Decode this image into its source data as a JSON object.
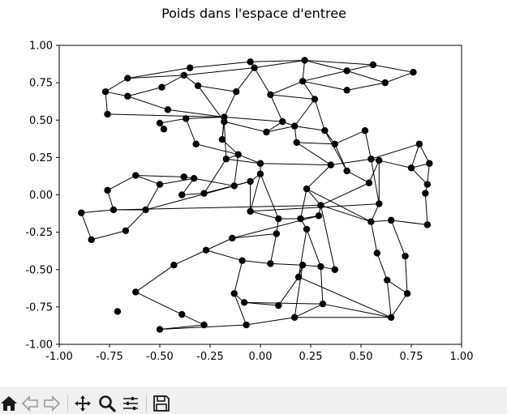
{
  "window": {
    "figure_title": "Poids dans l'espace d'entree"
  },
  "chart_data": {
    "type": "scatter",
    "title": "Poids dans l'espace d'entree",
    "xlabel": "",
    "ylabel": "",
    "xlim": [
      -1.0,
      1.0
    ],
    "ylim": [
      -1.0,
      1.0
    ],
    "xticks": [
      "-1.00",
      "-0.75",
      "-0.50",
      "-0.25",
      "0.00",
      "0.25",
      "0.50",
      "0.75",
      "1.00"
    ],
    "yticks": [
      "-1.00",
      "-0.75",
      "-0.50",
      "-0.25",
      "0.00",
      "0.25",
      "0.50",
      "0.75",
      "1.00"
    ],
    "grid": false,
    "marker_color": "#000000",
    "line_color": "#000000",
    "points": [
      [
        -0.35,
        0.85
      ],
      [
        -0.05,
        0.89
      ],
      [
        0.22,
        0.9
      ],
      [
        0.56,
        0.87
      ],
      [
        0.76,
        0.82
      ],
      [
        -0.66,
        0.78
      ],
      [
        -0.38,
        0.8
      ],
      [
        -0.03,
        0.85
      ],
      [
        0.43,
        0.83
      ],
      [
        0.62,
        0.75
      ],
      [
        -0.77,
        0.69
      ],
      [
        -0.49,
        0.72
      ],
      [
        -0.31,
        0.73
      ],
      [
        -0.12,
        0.69
      ],
      [
        0.21,
        0.76
      ],
      [
        0.43,
        0.7
      ],
      [
        -0.66,
        0.66
      ],
      [
        0.05,
        0.67
      ],
      [
        0.27,
        0.64
      ],
      [
        -0.46,
        0.57
      ],
      [
        -0.76,
        0.54
      ],
      [
        -0.18,
        0.52
      ],
      [
        -0.37,
        0.51
      ],
      [
        0.11,
        0.49
      ],
      [
        -0.5,
        0.48
      ],
      [
        -0.48,
        0.44
      ],
      [
        0.17,
        0.46
      ],
      [
        -0.18,
        0.49
      ],
      [
        0.32,
        0.43
      ],
      [
        0.52,
        0.43
      ],
      [
        0.03,
        0.42
      ],
      [
        -0.19,
        0.37
      ],
      [
        0.18,
        0.35
      ],
      [
        -0.32,
        0.34
      ],
      [
        0.37,
        0.34
      ],
      [
        0.79,
        0.34
      ],
      [
        -0.11,
        0.27
      ],
      [
        0.55,
        0.24
      ],
      [
        -0.17,
        0.24
      ],
      [
        0.59,
        0.23
      ],
      [
        0.84,
        0.21
      ],
      [
        0.0,
        0.21
      ],
      [
        0.35,
        0.2
      ],
      [
        0.75,
        0.18
      ],
      [
        0.43,
        0.16
      ],
      [
        -0.62,
        0.13
      ],
      [
        -0.38,
        0.12
      ],
      [
        -0.33,
        0.11
      ],
      [
        0.0,
        0.14
      ],
      [
        -0.5,
        0.07
      ],
      [
        -0.13,
        0.06
      ],
      [
        0.54,
        0.08
      ],
      [
        0.83,
        0.07
      ],
      [
        -0.76,
        0.03
      ],
      [
        -0.39,
        0.0
      ],
      [
        -0.28,
        0.01
      ],
      [
        0.23,
        0.04
      ],
      [
        -0.05,
        0.09
      ],
      [
        0.82,
        0.01
      ],
      [
        0.59,
        -0.06
      ],
      [
        0.3,
        -0.07
      ],
      [
        -0.73,
        -0.1
      ],
      [
        -0.57,
        -0.1
      ],
      [
        -0.89,
        -0.12
      ],
      [
        -0.05,
        -0.11
      ],
      [
        0.09,
        -0.16
      ],
      [
        0.2,
        -0.16
      ],
      [
        0.29,
        -0.14
      ],
      [
        0.55,
        -0.18
      ],
      [
        0.65,
        -0.17
      ],
      [
        0.83,
        -0.2
      ],
      [
        -0.67,
        -0.24
      ],
      [
        0.23,
        -0.23
      ],
      [
        -0.14,
        -0.29
      ],
      [
        0.08,
        -0.26
      ],
      [
        -0.84,
        -0.3
      ],
      [
        -0.27,
        -0.37
      ],
      [
        0.58,
        -0.39
      ],
      [
        0.72,
        -0.41
      ],
      [
        -0.43,
        -0.47
      ],
      [
        -0.09,
        -0.44
      ],
      [
        0.05,
        -0.46
      ],
      [
        0.21,
        -0.47
      ],
      [
        0.3,
        -0.48
      ],
      [
        0.37,
        -0.5
      ],
      [
        0.63,
        -0.57
      ],
      [
        0.19,
        -0.55
      ],
      [
        -0.62,
        -0.65
      ],
      [
        -0.13,
        -0.66
      ],
      [
        0.73,
        -0.66
      ],
      [
        -0.08,
        -0.72
      ],
      [
        0.09,
        -0.74
      ],
      [
        0.31,
        -0.73
      ],
      [
        -0.71,
        -0.78
      ],
      [
        -0.39,
        -0.8
      ],
      [
        -0.28,
        -0.87
      ],
      [
        -0.07,
        -0.87
      ],
      [
        0.17,
        -0.82
      ],
      [
        0.65,
        -0.82
      ],
      [
        -0.5,
        -0.9
      ]
    ],
    "edges": [
      [
        0,
        1
      ],
      [
        1,
        2
      ],
      [
        2,
        3
      ],
      [
        3,
        4
      ],
      [
        0,
        5
      ],
      [
        5,
        6
      ],
      [
        6,
        7
      ],
      [
        7,
        2
      ],
      [
        2,
        8
      ],
      [
        8,
        3
      ],
      [
        8,
        9
      ],
      [
        9,
        4
      ],
      [
        5,
        10
      ],
      [
        10,
        16
      ],
      [
        16,
        11
      ],
      [
        11,
        6
      ],
      [
        6,
        12
      ],
      [
        12,
        13
      ],
      [
        13,
        7
      ],
      [
        1,
        7
      ],
      [
        7,
        17
      ],
      [
        17,
        14
      ],
      [
        14,
        2
      ],
      [
        14,
        8
      ],
      [
        14,
        15
      ],
      [
        15,
        9
      ],
      [
        14,
        18
      ],
      [
        18,
        17
      ],
      [
        10,
        20
      ],
      [
        16,
        19
      ],
      [
        19,
        21
      ],
      [
        21,
        13
      ],
      [
        12,
        27
      ],
      [
        22,
        21
      ],
      [
        22,
        24
      ],
      [
        24,
        25
      ],
      [
        20,
        21
      ],
      [
        21,
        23
      ],
      [
        23,
        17
      ],
      [
        23,
        26
      ],
      [
        26,
        18
      ],
      [
        26,
        28
      ],
      [
        28,
        18
      ],
      [
        23,
        30
      ],
      [
        30,
        27
      ],
      [
        27,
        31
      ],
      [
        31,
        21
      ],
      [
        22,
        33
      ],
      [
        33,
        36
      ],
      [
        36,
        38
      ],
      [
        38,
        27
      ],
      [
        26,
        32
      ],
      [
        32,
        34
      ],
      [
        34,
        28
      ],
      [
        34,
        29
      ],
      [
        29,
        37
      ],
      [
        37,
        35
      ],
      [
        35,
        40
      ],
      [
        40,
        43
      ],
      [
        43,
        35
      ],
      [
        34,
        44
      ],
      [
        42,
        37
      ],
      [
        42,
        32
      ],
      [
        37,
        39
      ],
      [
        39,
        43
      ],
      [
        39,
        59
      ],
      [
        59,
        37
      ],
      [
        40,
        52
      ],
      [
        52,
        43
      ],
      [
        52,
        58
      ],
      [
        58,
        70
      ],
      [
        45,
        46
      ],
      [
        46,
        47
      ],
      [
        47,
        49
      ],
      [
        49,
        45
      ],
      [
        45,
        53
      ],
      [
        53,
        61
      ],
      [
        61,
        62
      ],
      [
        62,
        49
      ],
      [
        61,
        63
      ],
      [
        63,
        75
      ],
      [
        75,
        71
      ],
      [
        71,
        62
      ],
      [
        62,
        50
      ],
      [
        50,
        57
      ],
      [
        57,
        48
      ],
      [
        48,
        41
      ],
      [
        41,
        36
      ],
      [
        36,
        50
      ],
      [
        47,
        50
      ],
      [
        47,
        54
      ],
      [
        54,
        55
      ],
      [
        55,
        57
      ],
      [
        55,
        38
      ],
      [
        38,
        41
      ],
      [
        41,
        42
      ],
      [
        42,
        56
      ],
      [
        56,
        60
      ],
      [
        60,
        51
      ],
      [
        51,
        39
      ],
      [
        60,
        67
      ],
      [
        67,
        66
      ],
      [
        66,
        65
      ],
      [
        65,
        64
      ],
      [
        64,
        48
      ],
      [
        48,
        65
      ],
      [
        56,
        66
      ],
      [
        66,
        72
      ],
      [
        72,
        83
      ],
      [
        83,
        84
      ],
      [
        84,
        60
      ],
      [
        65,
        74
      ],
      [
        74,
        73
      ],
      [
        73,
        76
      ],
      [
        76,
        79
      ],
      [
        79,
        87
      ],
      [
        87,
        94
      ],
      [
        94,
        95
      ],
      [
        95,
        99
      ],
      [
        99,
        96
      ],
      [
        96,
        88
      ],
      [
        88,
        80
      ],
      [
        80,
        81
      ],
      [
        81,
        74
      ],
      [
        80,
        76
      ],
      [
        81,
        82
      ],
      [
        82,
        86
      ],
      [
        86,
        72
      ],
      [
        86,
        91
      ],
      [
        91,
        90
      ],
      [
        90,
        88
      ],
      [
        90,
        92
      ],
      [
        92,
        97
      ],
      [
        97,
        82
      ],
      [
        82,
        83
      ],
      [
        83,
        92
      ],
      [
        96,
        97
      ],
      [
        92,
        98
      ],
      [
        98,
        97
      ],
      [
        98,
        86
      ],
      [
        68,
        59
      ],
      [
        68,
        69
      ],
      [
        69,
        70
      ],
      [
        68,
        77
      ],
      [
        77,
        85
      ],
      [
        85,
        98
      ],
      [
        69,
        78
      ],
      [
        78,
        89
      ],
      [
        89,
        98
      ],
      [
        89,
        85
      ],
      [
        60,
        68
      ],
      [
        60,
        61
      ],
      [
        67,
        73
      ],
      [
        64,
        59
      ],
      [
        56,
        68
      ],
      [
        44,
        51
      ],
      [
        57,
        64
      ],
      [
        36,
        31
      ],
      [
        26,
        30
      ],
      [
        28,
        44
      ]
    ]
  },
  "toolbar": {
    "buttons": [
      {
        "name": "home",
        "label": "Home"
      },
      {
        "name": "back",
        "label": "Back"
      },
      {
        "name": "forward",
        "label": "Forward"
      },
      {
        "name": "pan",
        "label": "Pan"
      },
      {
        "name": "zoom",
        "label": "Zoom"
      },
      {
        "name": "subplots",
        "label": "Subplots"
      },
      {
        "name": "save",
        "label": "Save"
      }
    ]
  }
}
